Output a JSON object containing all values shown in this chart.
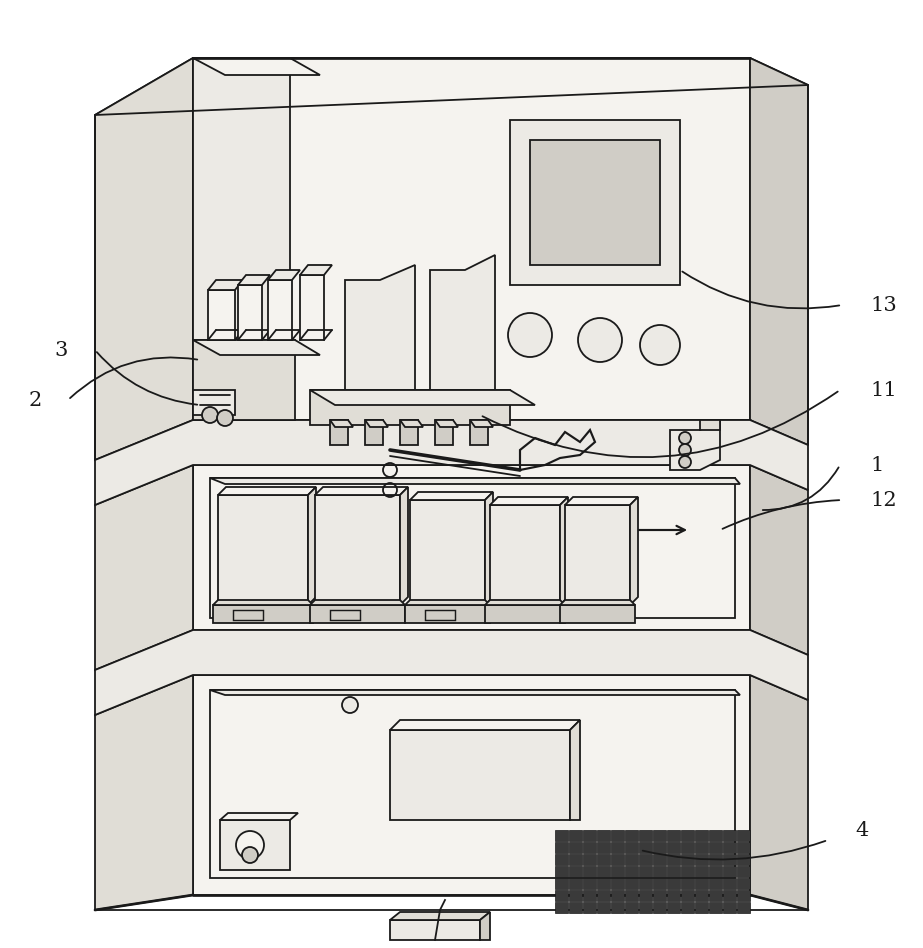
{
  "background_color": "#ffffff",
  "line_color": "#1a1a1a",
  "line_width": 1.3,
  "fill_light": "#f5f3ef",
  "fill_mid": "#eceae5",
  "fill_dark": "#e0ddd6",
  "fill_darker": "#d0cdc6",
  "fig_width": 9.23,
  "fig_height": 9.48,
  "label_fontsize": 15
}
